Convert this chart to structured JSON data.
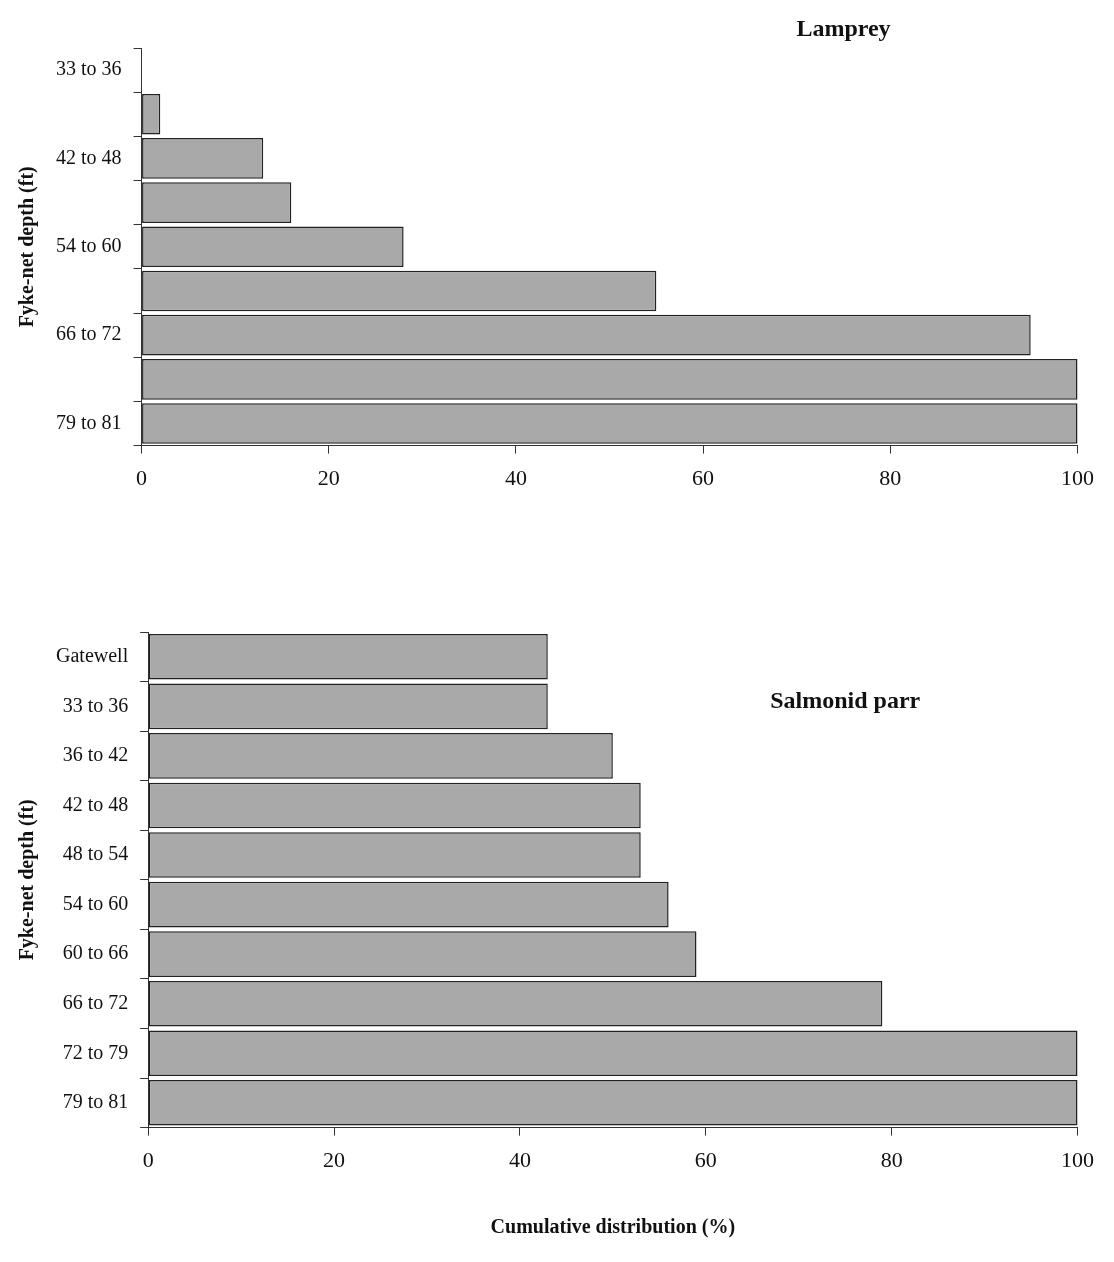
{
  "chart_data": [
    {
      "type": "bar",
      "title": "Lamprey",
      "orientation": "horizontal",
      "ylabel": "Fyke-net depth (ft)",
      "categories": [
        "33 to 36",
        null,
        "42 to 48",
        null,
        "54 to 60",
        null,
        "66 to 72",
        null,
        "79 to 81"
      ],
      "series": [
        {
          "color": "#a9a9a9",
          "values": [
            0,
            2,
            13,
            16,
            28,
            55,
            95,
            100,
            100
          ]
        }
      ],
      "xlim": [
        0,
        100
      ],
      "xticks": [
        0,
        20,
        40,
        60,
        80,
        100
      ],
      "grid": false,
      "legend": false
    },
    {
      "type": "bar",
      "title": "Salmonid parr",
      "orientation": "horizontal",
      "ylabel": "Fyke-net depth (ft)",
      "xlabel": "Cumulative distribution (%)",
      "categories": [
        "Gatewell",
        "33 to 36",
        "36 to 42",
        "42 to 48",
        "48 to 54",
        "54 to 60",
        "60 to 66",
        "66 to 72",
        "72 to 79",
        "79 to 81"
      ],
      "series": [
        {
          "color": "#a9a9a9",
          "values": [
            43,
            43,
            50,
            53,
            53,
            56,
            59,
            79,
            100,
            100
          ]
        }
      ],
      "xlim": [
        0,
        100
      ],
      "xticks": [
        0,
        20,
        40,
        60,
        80,
        100
      ],
      "grid": false,
      "legend": false
    }
  ]
}
